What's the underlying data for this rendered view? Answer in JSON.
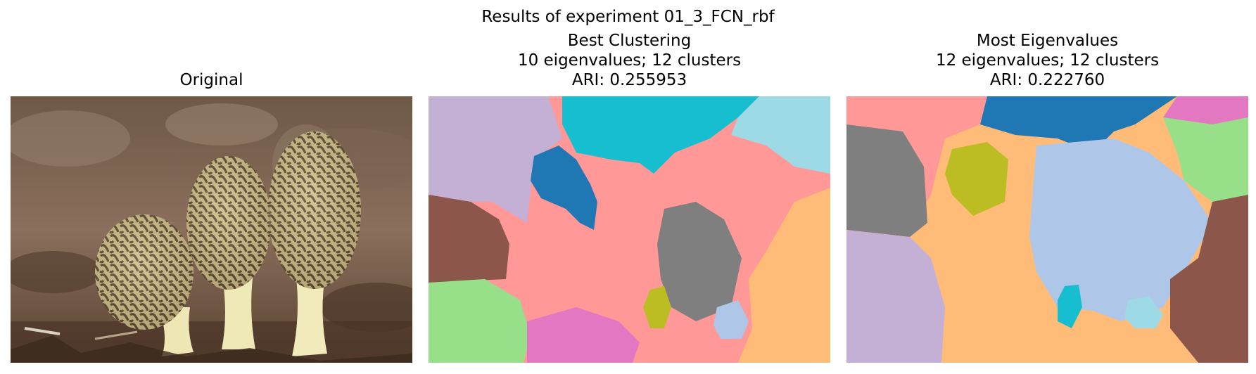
{
  "figure": {
    "suptitle": "Results of experiment 01_3_FCN_rbf"
  },
  "panels": [
    {
      "title_lines": [
        "Original"
      ]
    },
    {
      "title_lines": [
        "Best Clustering",
        "10 eigenvalues; 12 clusters",
        "ARI: 0.255953"
      ]
    },
    {
      "title_lines": [
        "Most Eigenvalues",
        "12 eigenvalues; 12 clusters",
        "ARI: 0.222760"
      ]
    }
  ],
  "colors": {
    "tab_blue": "#1f77b4",
    "tab_cyan": "#17becf",
    "tab_lightcyan": "#9edae5",
    "tab_lilac": "#c5b0d5",
    "tab_salmon": "#ff9896",
    "tab_orange": "#ffbb78",
    "tab_brown": "#8c564b",
    "tab_gray": "#7f7f7f",
    "tab_green": "#98df8a",
    "tab_pink": "#e377c2",
    "tab_olive": "#bcbd22",
    "tab_lightblue": "#aec7e8"
  }
}
